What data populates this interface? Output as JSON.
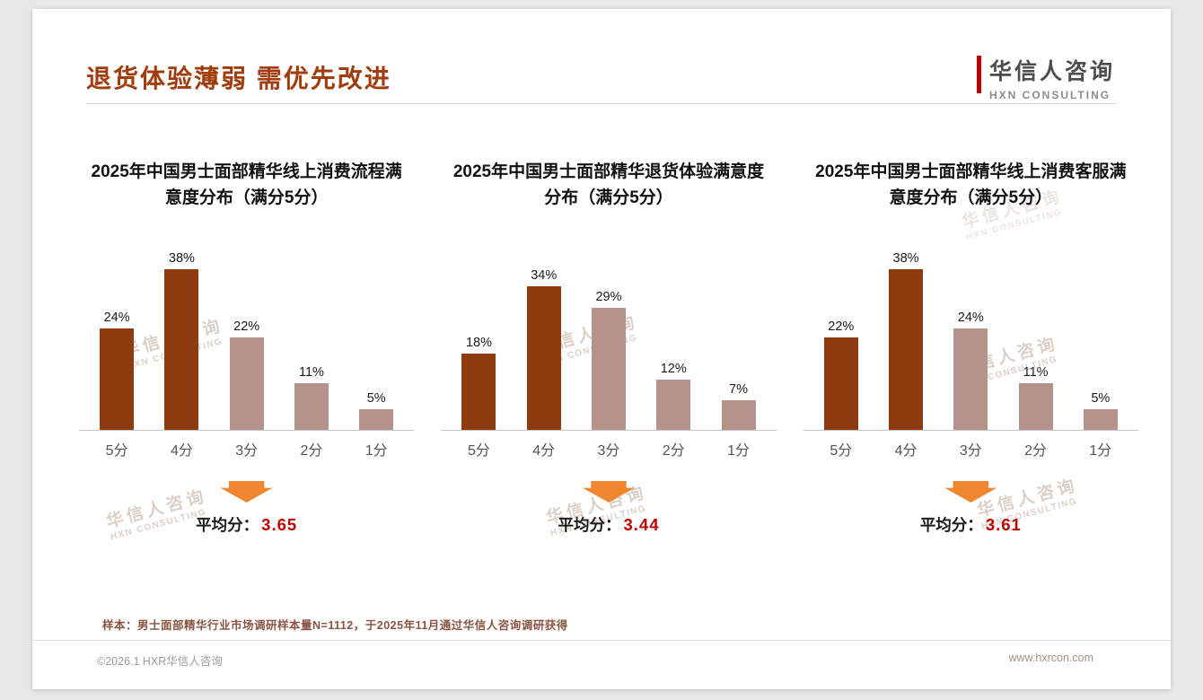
{
  "page": {
    "title": "退货体验薄弱 需优先改进",
    "logo": {
      "name": "华信人咨询",
      "sub": "HXN CONSULTING"
    },
    "watermark_cn": "华信人咨询",
    "watermark_en": "HXN CONSULTING",
    "footnote": "样本：男士面部精华行业市场调研样本量N=1112，于2025年11月通过华信人咨询调研获得",
    "footer": {
      "left": "©2026.1 HXR华信人咨询",
      "right": "www.hxrcon.com"
    }
  },
  "colors": {
    "accent_title": "#a13d0d",
    "bar_dark": "#8e3b10",
    "bar_light": "#b5928a",
    "avg_value_red": "#c00000",
    "arrow_orange": "#f0862d"
  },
  "chart_data": [
    {
      "type": "bar",
      "title": "2025年中国男士面部精华线上消费流程满意度分布（满分5分）",
      "categories": [
        "5分",
        "4分",
        "3分",
        "2分",
        "1分"
      ],
      "values": [
        24,
        38,
        22,
        11,
        5
      ],
      "unit": "%",
      "ylim": [
        0,
        40
      ],
      "bar_styles": [
        "dark",
        "dark",
        "light",
        "light",
        "light"
      ],
      "avg_label": "平均分：",
      "avg_value": "3.65"
    },
    {
      "type": "bar",
      "title": "2025年中国男士面部精华退货体验满意度分布（满分5分）",
      "categories": [
        "5分",
        "4分",
        "3分",
        "2分",
        "1分"
      ],
      "values": [
        18,
        34,
        29,
        12,
        7
      ],
      "unit": "%",
      "ylim": [
        0,
        40
      ],
      "bar_styles": [
        "dark",
        "dark",
        "light",
        "light",
        "light"
      ],
      "avg_label": "平均分：",
      "avg_value": "3.44"
    },
    {
      "type": "bar",
      "title": "2025年中国男士面部精华线上消费客服满意度分布（满分5分）",
      "categories": [
        "5分",
        "4分",
        "3分",
        "2分",
        "1分"
      ],
      "values": [
        22,
        38,
        24,
        11,
        5
      ],
      "unit": "%",
      "ylim": [
        0,
        40
      ],
      "bar_styles": [
        "dark",
        "dark",
        "light",
        "light",
        "light"
      ],
      "avg_label": "平均分：",
      "avg_value": "3.61"
    }
  ]
}
